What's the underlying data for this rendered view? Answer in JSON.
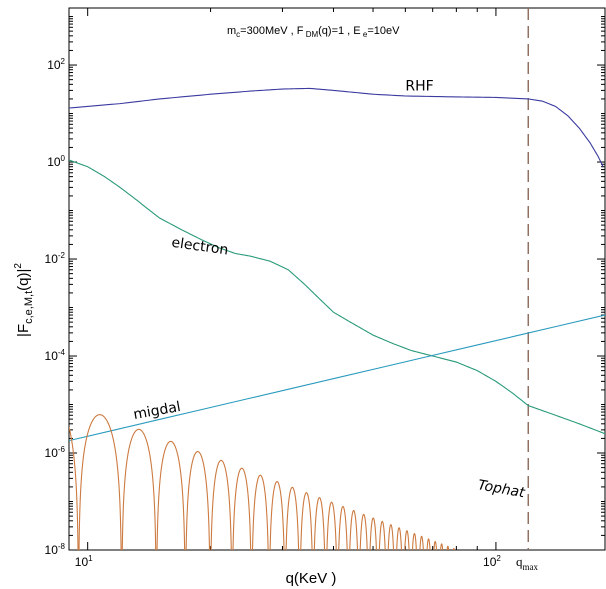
{
  "chart_data": {
    "type": "line",
    "xscale": "log",
    "yscale": "log",
    "xlim": [
      9,
      185
    ],
    "ylim": [
      1e-08,
      1500
    ],
    "xlabel": "q(KeV )",
    "ylabel": "|F",
    "ylabel_sub": "c,e,M,t",
    "ylabel_tail": "(q)|",
    "ylabel_sup": "2",
    "annotation": {
      "part1": "m",
      "part1_sub": "c",
      "part2": "=300MeV , F",
      "part2_sub": " DM",
      "part3": "(q)=1 , E",
      "part3_sub": " e",
      "part4": "=10eV"
    },
    "x_ticks": [
      {
        "value": 10,
        "base": "10",
        "exp": "1"
      },
      {
        "value": 100,
        "base": "10",
        "exp": "2"
      }
    ],
    "y_ticks": [
      {
        "value": 100.0,
        "base": "10",
        "exp": "2"
      },
      {
        "value": 1.0,
        "base": "10",
        "exp": "0"
      },
      {
        "value": 0.01,
        "base": "10",
        "exp": "-2"
      },
      {
        "value": 0.0001,
        "base": "10",
        "exp": "-4"
      },
      {
        "value": 1e-06,
        "base": "10",
        "exp": "-6"
      },
      {
        "value": 1e-08,
        "base": "10",
        "exp": "-8"
      }
    ],
    "qmax": {
      "x": 120,
      "label": "q",
      "label_sub": "max",
      "color": "#8b6a5a"
    },
    "series": [
      {
        "name": "RHF",
        "color": "#3a3aa0",
        "label_at": [
          60,
          30
        ],
        "points": [
          [
            9,
            13
          ],
          [
            12,
            16
          ],
          [
            15,
            20
          ],
          [
            20,
            25
          ],
          [
            25,
            29
          ],
          [
            30,
            32
          ],
          [
            35,
            33
          ],
          [
            40,
            30
          ],
          [
            50,
            25
          ],
          [
            60,
            23
          ],
          [
            80,
            22
          ],
          [
            100,
            21.5
          ],
          [
            120,
            20
          ],
          [
            130,
            18
          ],
          [
            140,
            14
          ],
          [
            150,
            9
          ],
          [
            160,
            5
          ],
          [
            170,
            2.5
          ],
          [
            178,
            1.3
          ],
          [
            183,
            0.8
          ]
        ]
      },
      {
        "name": "electron",
        "color": "#2a9a7a",
        "label_at": [
          16,
          0.018
        ],
        "points": [
          [
            9,
            1.1
          ],
          [
            10,
            0.8
          ],
          [
            11,
            0.5
          ],
          [
            12,
            0.3
          ],
          [
            13,
            0.18
          ],
          [
            14,
            0.11
          ],
          [
            15,
            0.07
          ],
          [
            17,
            0.04
          ],
          [
            19,
            0.025
          ],
          [
            21,
            0.017
          ],
          [
            23,
            0.013
          ],
          [
            25,
            0.0115
          ],
          [
            28,
            0.009
          ],
          [
            31,
            0.006
          ],
          [
            34,
            0.003
          ],
          [
            37,
            0.0015
          ],
          [
            40,
            0.0008
          ],
          [
            44,
            0.0005
          ],
          [
            50,
            0.00027
          ],
          [
            56,
            0.00018
          ],
          [
            62,
            0.00013
          ],
          [
            70,
            0.0001
          ],
          [
            80,
            7.5e-05
          ],
          [
            90,
            5e-05
          ],
          [
            100,
            3e-05
          ],
          [
            110,
            1.7e-05
          ],
          [
            120,
            9.5e-06
          ],
          [
            140,
            6e-06
          ],
          [
            160,
            4e-06
          ],
          [
            185,
            2.5e-06
          ]
        ]
      },
      {
        "name": "migdal",
        "color": "#2a9abe",
        "label_at": [
          13,
          5e-06
        ],
        "points": [
          [
            9,
            1.8e-06
          ],
          [
            185,
            0.0007
          ]
        ]
      },
      {
        "name": "Tophat",
        "color": "#cc7a40",
        "label_at": [
          90,
          1.8e-07
        ],
        "decay": 1.45,
        "amp": 1.09e-05
      }
    ]
  }
}
